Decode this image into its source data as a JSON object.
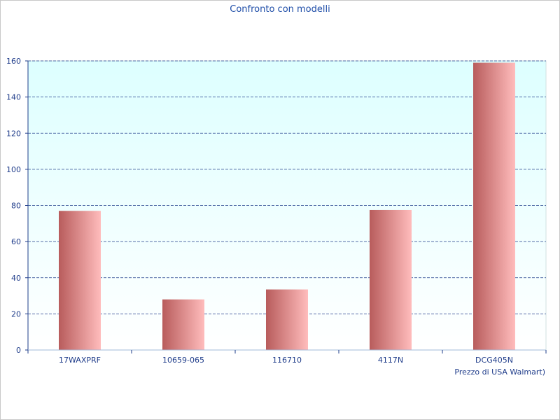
{
  "chart_data": {
    "type": "bar",
    "title": "Confronto con modelli",
    "xlabel": "Prezzo di USA Walmart)",
    "ylabel": "",
    "categories": [
      "17WAXPRF",
      "10659-065",
      "116710",
      "4117N",
      "DCG405N"
    ],
    "series": [
      {
        "values": [
          77,
          28,
          33.5,
          77.5,
          159
        ]
      }
    ],
    "ylim": [
      0,
      160
    ],
    "yticks": [
      0,
      20,
      40,
      60,
      80,
      100,
      120,
      140,
      160
    ],
    "grid": true,
    "legend": "none",
    "colors": {
      "bar_dark": "#b85c5c",
      "bar_light": "#ffbcbc",
      "plot_bg_top": "#ddffff",
      "plot_bg_bottom": "#ffffff",
      "grid": "#1f3c8a",
      "text": "#1f3c8a"
    }
  }
}
